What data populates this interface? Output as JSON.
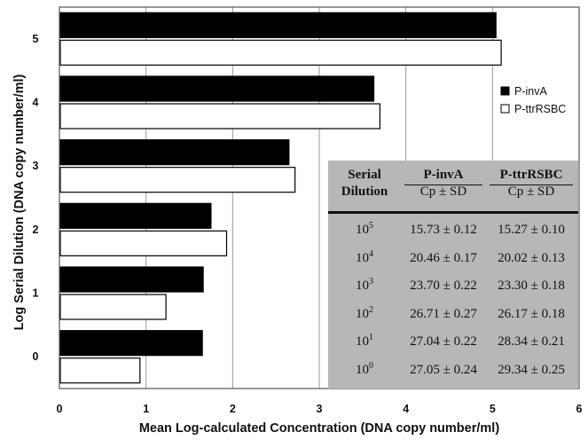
{
  "chart_data": {
    "type": "bar",
    "orientation": "horizontal",
    "xlabel": "Mean Log-calculated Concentration (DNA copy number/ml)",
    "ylabel": "Log Serial Dilution (DNA copy number/ml)",
    "xlim": [
      0,
      6
    ],
    "xticks": [
      "0",
      "1",
      "2",
      "3",
      "4",
      "5",
      "6"
    ],
    "categories": [
      "0",
      "1",
      "2",
      "3",
      "4",
      "5"
    ],
    "series": [
      {
        "name": "P-invA",
        "color": "#000000",
        "values": [
          1.65,
          1.66,
          1.75,
          2.65,
          3.63,
          5.04
        ]
      },
      {
        "name": "P-ttrRSBC",
        "color": "#ffffff",
        "values": [
          0.93,
          1.23,
          1.93,
          2.72,
          3.7,
          5.1
        ]
      }
    ],
    "grid": "vertical",
    "legend_position": "top-right"
  },
  "table": {
    "header": {
      "col0_line1": "Serial",
      "col0_line2": "Dilution",
      "col1_line1": "P-invA",
      "col1_line2": "Cp ± SD",
      "col2_line1": "P-ttrRSBC",
      "col2_line2": "Cp ± SD"
    },
    "rows": [
      {
        "base": "10",
        "exp": "5",
        "invA": "15.73 ± 0.12",
        "ttr": "15.27 ± 0.10"
      },
      {
        "base": "10",
        "exp": "4",
        "invA": "20.46 ± 0.17",
        "ttr": "20.02 ± 0.13"
      },
      {
        "base": "10",
        "exp": "3",
        "invA": "23.70 ± 0.22",
        "ttr": "23.30 ± 0.18"
      },
      {
        "base": "10",
        "exp": "2",
        "invA": "26.71 ± 0.27",
        "ttr": "26.17 ± 0.18"
      },
      {
        "base": "10",
        "exp": "1",
        "invA": "27.04 ± 0.22",
        "ttr": "28.34 ± 0.21"
      },
      {
        "base": "10",
        "exp": "0",
        "invA": "27.05 ± 0.24",
        "ttr": "29.34 ± 0.25"
      }
    ]
  }
}
